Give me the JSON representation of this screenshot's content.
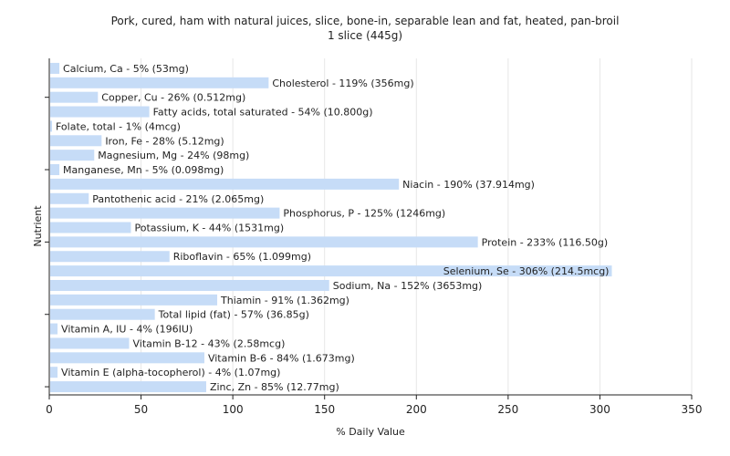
{
  "chart_data": {
    "type": "bar",
    "orientation": "horizontal",
    "title": "Pork, cured, ham with natural juices, slice, bone-in, separable lean and fat, heated, pan-broil",
    "subtitle": "1 slice (445g)",
    "xlabel": "% Daily Value",
    "ylabel": "Nutrient",
    "xlim": [
      0,
      350
    ],
    "xticks": [
      0,
      50,
      100,
      150,
      200,
      250,
      300,
      350
    ],
    "grid": true,
    "bar_color": "#c6dcf7",
    "categories": [
      "Calcium, Ca",
      "Cholesterol",
      "Copper, Cu",
      "Fatty acids, total saturated",
      "Folate, total",
      "Iron, Fe",
      "Magnesium, Mg",
      "Manganese, Mn",
      "Niacin",
      "Pantothenic acid",
      "Phosphorus, P",
      "Potassium, K",
      "Protein",
      "Riboflavin",
      "Selenium, Se",
      "Sodium, Na",
      "Thiamin",
      "Total lipid (fat)",
      "Vitamin A, IU",
      "Vitamin B-12",
      "Vitamin B-6",
      "Vitamin E (alpha-tocopherol)",
      "Zinc, Zn"
    ],
    "values": [
      5,
      119,
      26,
      54,
      1,
      28,
      24,
      5,
      190,
      21,
      125,
      44,
      233,
      65,
      306,
      152,
      91,
      57,
      4,
      43,
      84,
      4,
      85
    ],
    "labels": [
      "Calcium, Ca - 5% (53mg)",
      "Cholesterol - 119% (356mg)",
      "Copper, Cu - 26% (0.512mg)",
      "Fatty acids, total saturated - 54% (10.800g)",
      "Folate, total - 1% (4mcg)",
      "Iron, Fe - 28% (5.12mg)",
      "Magnesium, Mg - 24% (98mg)",
      "Manganese, Mn - 5% (0.098mg)",
      "Niacin - 190% (37.914mg)",
      "Pantothenic acid - 21% (2.065mg)",
      "Phosphorus, P - 125% (1246mg)",
      "Potassium, K - 44% (1531mg)",
      "Protein - 233% (116.50g)",
      "Riboflavin - 65% (1.099mg)",
      "Selenium, Se - 306% (214.5mcg)",
      "Sodium, Na - 152% (3653mg)",
      "Thiamin - 91% (1.362mg)",
      "Total lipid (fat) - 57% (36.85g)",
      "Vitamin A, IU - 4% (196IU)",
      "Vitamin B-12 - 43% (2.58mcg)",
      "Vitamin B-6 - 84% (1.673mg)",
      "Vitamin E (alpha-tocopherol) - 4% (1.07mg)",
      "Zinc, Zn - 85% (12.77mg)"
    ]
  }
}
